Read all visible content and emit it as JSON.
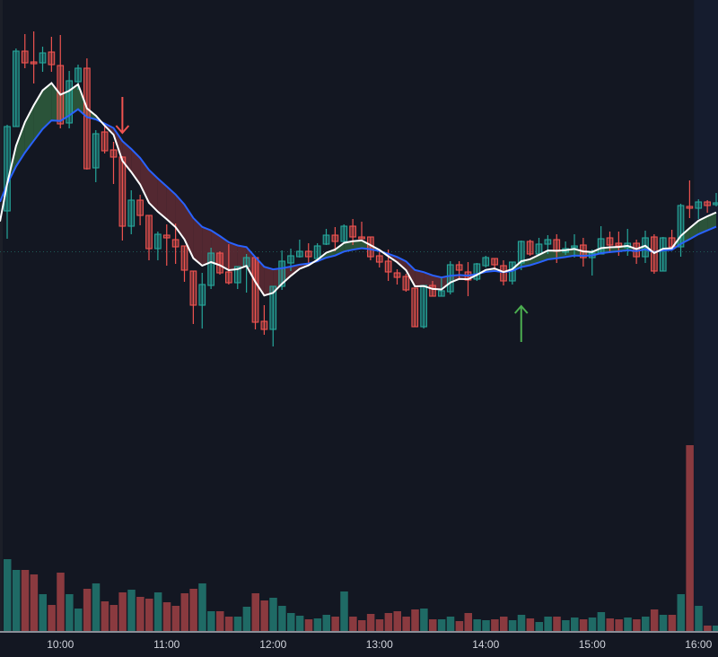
{
  "chart_data": {
    "type": "candlestick",
    "title": "",
    "xlabel": "",
    "ylabel": "",
    "x_start": "09:30",
    "interval_min": 5,
    "regular_session_end": "16:00",
    "x_tick_labels": [
      "10:00",
      "11:00",
      "12:00",
      "13:00",
      "14:00",
      "15:00",
      "16:00"
    ],
    "y_axis_shown": false,
    "grid": false,
    "ohlc": [
      [
        46.5,
        56.1,
        43.4,
        55.9
      ],
      [
        55.9,
        64.6,
        55.9,
        64.3
      ],
      [
        64.3,
        66.2,
        62.4,
        63.0
      ],
      [
        63.1,
        66.5,
        60.7,
        62.9
      ],
      [
        63.0,
        64.8,
        62.0,
        64.1
      ],
      [
        64.2,
        65.9,
        62.0,
        62.8
      ],
      [
        62.7,
        66.1,
        55.7,
        56.2
      ],
      [
        56.3,
        62.1,
        55.7,
        61.0
      ],
      [
        60.9,
        62.8,
        60.0,
        62.4
      ],
      [
        62.4,
        63.5,
        51.1,
        51.2
      ],
      [
        51.3,
        55.5,
        49.7,
        55.1
      ],
      [
        55.3,
        56.0,
        52.9,
        53.2
      ],
      [
        53.3,
        54.2,
        49.5,
        52.5
      ],
      [
        52.5,
        52.6,
        43.2,
        44.8
      ],
      [
        44.8,
        48.8,
        43.9,
        47.7
      ],
      [
        47.7,
        48.3,
        44.9,
        46.0
      ],
      [
        46.0,
        46.0,
        41.0,
        42.3
      ],
      [
        42.3,
        44.2,
        41.0,
        43.9
      ],
      [
        43.8,
        45.0,
        40.4,
        43.5
      ],
      [
        43.3,
        45.1,
        40.6,
        42.5
      ],
      [
        42.6,
        42.6,
        38.6,
        39.9
      ],
      [
        39.8,
        39.8,
        33.9,
        36.0
      ],
      [
        36.0,
        39.6,
        33.4,
        38.3
      ],
      [
        38.2,
        42.4,
        37.8,
        41.8
      ],
      [
        41.8,
        42.0,
        39.4,
        39.6
      ],
      [
        39.7,
        42.8,
        38.3,
        38.5
      ],
      [
        38.5,
        40.3,
        37.8,
        40.3
      ],
      [
        40.3,
        41.7,
        37.4,
        41.3
      ],
      [
        41.3,
        41.3,
        33.3,
        34.1
      ],
      [
        34.2,
        36.0,
        32.7,
        33.3
      ],
      [
        33.3,
        38.1,
        31.4,
        38.1
      ],
      [
        38.1,
        42.1,
        37.7,
        40.9
      ],
      [
        40.7,
        42.3,
        39.8,
        41.5
      ],
      [
        41.4,
        43.3,
        41.3,
        42.0
      ],
      [
        42.0,
        42.9,
        40.5,
        41.4
      ],
      [
        41.2,
        42.9,
        40.8,
        42.6
      ],
      [
        42.8,
        44.5,
        42.7,
        43.8
      ],
      [
        43.8,
        44.7,
        42.0,
        43.1
      ],
      [
        43.1,
        45.0,
        43.0,
        44.8
      ],
      [
        44.8,
        45.6,
        42.7,
        43.6
      ],
      [
        43.6,
        45.3,
        43.4,
        43.4
      ],
      [
        43.6,
        43.6,
        41.0,
        41.4
      ],
      [
        41.5,
        42.0,
        40.2,
        40.8
      ],
      [
        40.9,
        42.2,
        38.7,
        39.7
      ],
      [
        39.6,
        40.0,
        38.3,
        39.1
      ],
      [
        39.2,
        39.5,
        37.5,
        37.7
      ],
      [
        37.9,
        37.9,
        33.6,
        33.6
      ],
      [
        33.6,
        38.2,
        33.4,
        38.2
      ],
      [
        38.2,
        38.7,
        37.0,
        37.0
      ],
      [
        37.0,
        39.0,
        37.0,
        37.6
      ],
      [
        37.5,
        40.9,
        37.2,
        40.5
      ],
      [
        40.5,
        40.9,
        38.9,
        39.9
      ],
      [
        39.7,
        40.8,
        37.0,
        38.8
      ],
      [
        38.9,
        40.7,
        38.7,
        40.6
      ],
      [
        40.4,
        41.5,
        40.2,
        41.3
      ],
      [
        41.2,
        41.2,
        39.8,
        40.5
      ],
      [
        40.4,
        41.0,
        38.2,
        38.7
      ],
      [
        38.7,
        40.8,
        38.3,
        40.8
      ],
      [
        40.7,
        43.2,
        39.9,
        43.1
      ],
      [
        43.1,
        43.3,
        41.5,
        41.7
      ],
      [
        41.7,
        43.5,
        41.5,
        42.8
      ],
      [
        42.8,
        43.8,
        41.7,
        43.3
      ],
      [
        43.3,
        43.9,
        40.7,
        42.0
      ],
      [
        41.9,
        43.1,
        41.6,
        42.3
      ],
      [
        42.4,
        43.9,
        41.3,
        42.6
      ],
      [
        42.7,
        43.5,
        40.3,
        41.3
      ],
      [
        41.3,
        42.2,
        39.3,
        41.8
      ],
      [
        41.7,
        44.8,
        41.7,
        43.4
      ],
      [
        43.5,
        44.2,
        41.8,
        42.7
      ],
      [
        42.9,
        44.2,
        41.5,
        42.6
      ],
      [
        42.4,
        44.5,
        41.5,
        42.9
      ],
      [
        42.9,
        43.3,
        40.6,
        41.4
      ],
      [
        41.4,
        44.3,
        40.7,
        43.5
      ],
      [
        43.6,
        43.9,
        39.5,
        39.8
      ],
      [
        39.8,
        43.6,
        39.8,
        43.5
      ],
      [
        43.5,
        44.4,
        42.4,
        42.5
      ],
      [
        42.5,
        47.3,
        41.4,
        47.1
      ],
      [
        47.0,
        49.9,
        45.7,
        46.8
      ],
      [
        46.8,
        47.8,
        45.6,
        47.5
      ],
      [
        47.5,
        47.7,
        46.3,
        47.1
      ],
      [
        47.2,
        48.5,
        47.0,
        47.4
      ]
    ],
    "volume": [
      2000,
      1700,
      1700,
      1575,
      1025,
      725,
      1625,
      1025,
      625,
      1175,
      1325,
      825,
      725,
      1075,
      1150,
      950,
      900,
      1075,
      800,
      700,
      1050,
      1175,
      1325,
      550,
      550,
      400,
      400,
      675,
      1050,
      850,
      925,
      700,
      500,
      425,
      325,
      350,
      450,
      400,
      1100,
      400,
      300,
      475,
      325,
      500,
      550,
      400,
      600,
      625,
      325,
      325,
      400,
      275,
      500,
      325,
      300,
      325,
      400,
      300,
      450,
      350,
      250,
      400,
      400,
      300,
      375,
      325,
      375,
      525,
      350,
      325,
      375,
      325,
      400,
      600,
      450,
      450,
      1025,
      5175,
      700,
      150,
      150
    ],
    "series": [
      {
        "type": "ema-fast",
        "color": "#ffffff"
      },
      {
        "type": "ema-slow",
        "color": "#2962ff"
      }
    ],
    "signals": [
      {
        "type": "sell",
        "time": "10:35",
        "icon": "arrow-down-icon",
        "color": "#f05350"
      },
      {
        "type": "buy",
        "time": "14:20",
        "icon": "arrow-up-icon",
        "color": "#4caf50"
      }
    ],
    "colors": {
      "background": "#131722",
      "extended_hours_background": "#151c2e",
      "up": "#26a69a",
      "down": "#ef5350",
      "ema_fill_bull": "#2e5a3c",
      "ema_fill_bear": "#5b2a33",
      "volume_up": "#1f6a65",
      "volume_down": "#8a3a3f"
    }
  }
}
